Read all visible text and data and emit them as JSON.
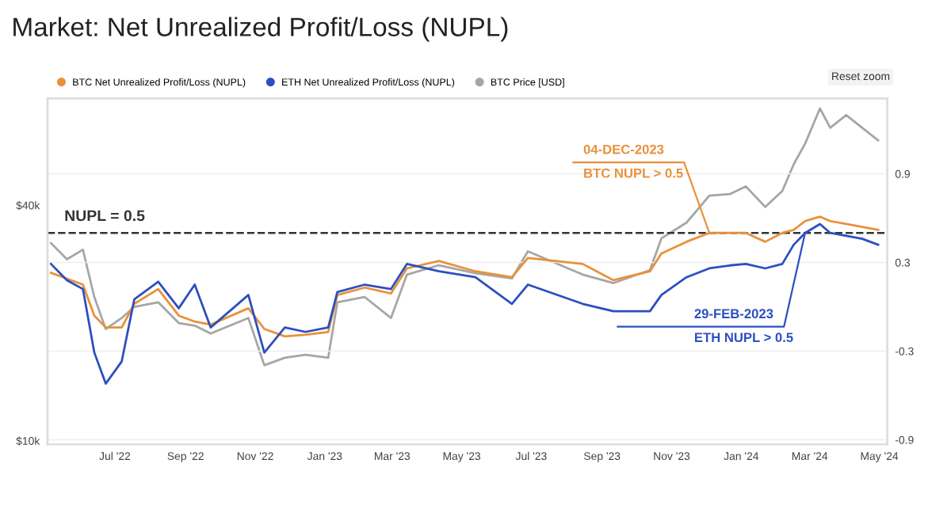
{
  "chart_data": {
    "type": "line",
    "title": "Market: Net Unrealized Profit/Loss (NUPL)",
    "x": [
      "2022-05-06",
      "2022-05-20",
      "2022-06-03",
      "2022-06-13",
      "2022-06-23",
      "2022-07-07",
      "2022-07-18",
      "2022-08-08",
      "2022-08-26",
      "2022-09-09",
      "2022-09-23",
      "2022-10-26",
      "2022-11-09",
      "2022-11-27",
      "2022-12-15",
      "2023-01-04",
      "2023-01-12",
      "2023-02-05",
      "2023-02-28",
      "2023-03-14",
      "2023-04-11",
      "2023-05-13",
      "2023-06-14",
      "2023-06-28",
      "2023-08-15",
      "2023-09-11",
      "2023-10-13",
      "2023-10-23",
      "2023-11-14",
      "2023-12-04",
      "2023-12-22",
      "2024-01-05",
      "2024-01-22",
      "2024-02-06",
      "2024-02-16",
      "2024-02-26",
      "2024-03-10",
      "2024-03-19",
      "2024-04-02",
      "2024-04-16",
      "2024-04-30"
    ],
    "series": [
      {
        "name": "BTC Net Unrealized Profit/Loss (NUPL)",
        "color": "#e8913a",
        "axis": "y2",
        "values": [
          0.23,
          0.19,
          0.15,
          -0.06,
          -0.14,
          -0.14,
          0.02,
          0.12,
          -0.06,
          -0.1,
          -0.12,
          -0.01,
          -0.15,
          -0.2,
          -0.19,
          -0.17,
          0.08,
          0.13,
          0.09,
          0.26,
          0.31,
          0.24,
          0.2,
          0.33,
          0.29,
          0.18,
          0.24,
          0.36,
          0.44,
          0.5,
          0.5,
          0.5,
          0.44,
          0.5,
          0.52,
          0.58,
          0.61,
          0.58,
          0.56,
          0.54,
          0.52
        ]
      },
      {
        "name": "ETH Net Unrealized Profit/Loss (NUPL)",
        "color": "#2d4fbf",
        "axis": "y2",
        "values": [
          0.29,
          0.18,
          0.12,
          -0.31,
          -0.52,
          -0.37,
          0.05,
          0.17,
          -0.01,
          0.15,
          -0.14,
          0.08,
          -0.31,
          -0.14,
          -0.17,
          -0.14,
          0.1,
          0.15,
          0.12,
          0.29,
          0.24,
          0.2,
          0.02,
          0.15,
          0.02,
          -0.03,
          -0.03,
          0.08,
          0.2,
          0.26,
          0.28,
          0.29,
          0.26,
          0.29,
          0.42,
          0.5,
          0.56,
          0.5,
          0.48,
          0.46,
          0.42
        ]
      },
      {
        "name": "BTC Price [USD]",
        "color": "#a6a6a6",
        "axis": "y",
        "values": [
          32000,
          29100,
          30800,
          23300,
          19300,
          20600,
          22000,
          22600,
          20000,
          19700,
          18800,
          20600,
          15600,
          16300,
          16600,
          16300,
          22600,
          23300,
          20600,
          26600,
          28100,
          26800,
          26000,
          30500,
          26600,
          25300,
          27300,
          32900,
          36100,
          42300,
          42700,
          44700,
          39600,
          43500,
          50900,
          57500,
          70700,
          63100,
          68000,
          63100,
          58600
        ]
      }
    ],
    "log": "y",
    "xlim": [
      "2022-05-03",
      "2024-05-08"
    ],
    "xticks": [
      {
        "value": "2022-07-01",
        "label": "Jul '22"
      },
      {
        "value": "2022-09-01",
        "label": "Sep '22"
      },
      {
        "value": "2022-11-01",
        "label": "Nov '22"
      },
      {
        "value": "2023-01-01",
        "label": "Jan '23"
      },
      {
        "value": "2023-03-01",
        "label": "Mar '23"
      },
      {
        "value": "2023-05-01",
        "label": "May '23"
      },
      {
        "value": "2023-07-01",
        "label": "Jul '23"
      },
      {
        "value": "2023-09-01",
        "label": "Sep '23"
      },
      {
        "value": "2023-11-01",
        "label": "Nov '23"
      },
      {
        "value": "2024-01-01",
        "label": "Jan '24"
      },
      {
        "value": "2024-03-01",
        "label": "Mar '24"
      },
      {
        "value": "2024-05-01",
        "label": "May '24"
      }
    ],
    "ylim": [
      9800,
      75000
    ],
    "yticks": [
      {
        "value": 10000,
        "label": "$10k"
      },
      {
        "value": 40000,
        "label": "$40k"
      }
    ],
    "y2lim": [
      -0.93,
      1.41
    ],
    "y2ticks": [
      -0.9,
      -0.3,
      0.3,
      0.9
    ],
    "ref_lines": [
      {
        "axis": "y2",
        "value": 0.5,
        "label": "NUPL = 0.5",
        "color": "#333333",
        "line_style": "dashed"
      }
    ],
    "annotations": [
      {
        "text": "04-DEC-2023\nBTC NUPL > 0.5",
        "x": "2023-12-04",
        "y": 34000
      },
      {
        "text": "29-FEB-2023\nETH NUPL > 0.5",
        "x": "2024-02-26",
        "y": 34000
      },
      "Reset zoom"
    ],
    "grid": "y",
    "legend": "top left",
    "marker": "none",
    "line_style": "solid"
  }
}
